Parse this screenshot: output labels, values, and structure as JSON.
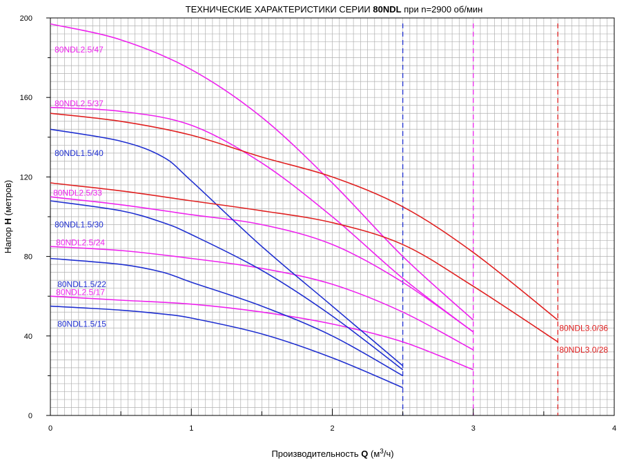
{
  "chart_data": {
    "type": "line",
    "title": {
      "prefix": "ТЕХНИЧЕСКИЕ ХАРАКТЕРИСТИКИ СЕРИИ ",
      "bold": "80NDL",
      "suffix": " при n=2900 об/мин"
    },
    "xlabel": {
      "prefix": "Производительность ",
      "bold": "Q",
      "unit_open": " (м",
      "sup": "3",
      "unit_close": "/ч)"
    },
    "ylabel": {
      "prefix": "Напор ",
      "bold": "H",
      "suffix": " (метров)"
    },
    "xlim": [
      0,
      4
    ],
    "ylim": [
      0,
      200
    ],
    "x_ticks": [
      "0",
      "1",
      "2",
      "3",
      "4"
    ],
    "y_ticks": [
      "0",
      "40",
      "80",
      "120",
      "160",
      "200"
    ],
    "grid": true,
    "colors": {
      "blue": "#1f2fd0",
      "magenta": "#ee22ee",
      "red": "#e02020",
      "grid": "#b0b0b0"
    },
    "vlines": [
      {
        "x": 2.5,
        "color": "#1f2fd0"
      },
      {
        "x": 3.0,
        "color": "#ee22ee"
      },
      {
        "x": 3.6,
        "color": "#e02020"
      }
    ],
    "series": [
      {
        "name": "80NDL2.5/47",
        "color": "#ee22ee",
        "x": [
          0,
          0.5,
          1.0,
          1.5,
          2.0,
          2.5,
          3.0
        ],
        "y": [
          197,
          189,
          174,
          150,
          117,
          80,
          48
        ]
      },
      {
        "name": "80NDL2.5/37",
        "color": "#ee22ee",
        "x": [
          0,
          0.5,
          1.0,
          1.5,
          2.0,
          2.5,
          3.0
        ],
        "y": [
          155,
          153,
          146,
          127,
          100,
          69,
          42
        ]
      },
      {
        "name": "80NDL2.5/33",
        "color": "#ee22ee",
        "x": [
          0,
          0.5,
          1.0,
          1.5,
          2.0,
          2.5,
          3.0
        ],
        "y": [
          110,
          106,
          101,
          96,
          86,
          67,
          42
        ]
      },
      {
        "name": "80NDL2.5/24",
        "color": "#ee22ee",
        "x": [
          0,
          0.5,
          1.0,
          1.5,
          2.0,
          2.5,
          3.0
        ],
        "y": [
          85,
          83,
          79,
          74,
          66,
          52,
          33
        ]
      },
      {
        "name": "80NDL2.5/17",
        "color": "#ee22ee",
        "x": [
          0,
          0.5,
          1.0,
          1.5,
          2.0,
          2.5,
          3.0
        ],
        "y": [
          60,
          58,
          56,
          52,
          46,
          37,
          23
        ]
      },
      {
        "name": "80NDL1.5/40",
        "color": "#1f2fd0",
        "x": [
          0,
          0.5,
          0.8,
          1.0,
          1.5,
          2.0,
          2.5
        ],
        "y": [
          144,
          138,
          130,
          118,
          85,
          55,
          25
        ]
      },
      {
        "name": "80NDL1.5/30",
        "color": "#1f2fd0",
        "x": [
          0,
          0.5,
          0.8,
          1.0,
          1.5,
          2.0,
          2.5
        ],
        "y": [
          108,
          103,
          97,
          91,
          73,
          50,
          23
        ]
      },
      {
        "name": "80NDL1.5/22",
        "color": "#1f2fd0",
        "x": [
          0,
          0.5,
          0.8,
          1.0,
          1.5,
          2.0,
          2.5
        ],
        "y": [
          79,
          76,
          72,
          67,
          55,
          40,
          20
        ]
      },
      {
        "name": "80NDL1.5/15",
        "color": "#1f2fd0",
        "x": [
          0,
          0.5,
          0.8,
          1.0,
          1.5,
          2.0,
          2.5
        ],
        "y": [
          55,
          53,
          51,
          49,
          41,
          29,
          14
        ]
      },
      {
        "name": "80NDL3.0/36",
        "color": "#e02020",
        "x": [
          0,
          0.5,
          1.0,
          1.5,
          2.0,
          2.5,
          3.0,
          3.6
        ],
        "y": [
          152,
          148,
          141,
          130,
          120,
          105,
          82,
          48
        ]
      },
      {
        "name": "80NDL3.0/28",
        "color": "#e02020",
        "x": [
          0,
          0.5,
          1.0,
          1.5,
          2.0,
          2.5,
          3.0,
          3.6
        ],
        "y": [
          117,
          113,
          108,
          103,
          97,
          86,
          65,
          37
        ]
      }
    ],
    "labels": [
      {
        "text": "80NDL2.5/47",
        "color": "#ee22ee",
        "at_x": 0.03,
        "at_y": 184,
        "anchor": "start"
      },
      {
        "text": "80NDL2.5/37",
        "color": "#ee22ee",
        "at_x": 0.03,
        "at_y": 157,
        "anchor": "start"
      },
      {
        "text": "80NDL1.5/40",
        "color": "#1f2fd0",
        "at_x": 0.03,
        "at_y": 132,
        "anchor": "start"
      },
      {
        "text": "80NDL2.5/33",
        "color": "#ee22ee",
        "at_x": 0.02,
        "at_y": 112,
        "anchor": "start"
      },
      {
        "text": "80NDL1.5/30",
        "color": "#1f2fd0",
        "at_x": 0.03,
        "at_y": 96,
        "anchor": "start"
      },
      {
        "text": "80NDL2.5/24",
        "color": "#ee22ee",
        "at_x": 0.04,
        "at_y": 87,
        "anchor": "start"
      },
      {
        "text": "80NDL1.5/22",
        "color": "#1f2fd0",
        "at_x": 0.05,
        "at_y": 66,
        "anchor": "start"
      },
      {
        "text": "80NDL2.5/17",
        "color": "#ee22ee",
        "at_x": 0.04,
        "at_y": 62,
        "anchor": "start"
      },
      {
        "text": "80NDL1.5/15",
        "color": "#1f2fd0",
        "at_x": 0.05,
        "at_y": 46,
        "anchor": "start"
      },
      {
        "text": "80NDL3.0/36",
        "color": "#e02020",
        "at_x": 3.61,
        "at_y": 44,
        "anchor": "start"
      },
      {
        "text": "80NDL3.0/28",
        "color": "#e02020",
        "at_x": 3.61,
        "at_y": 33,
        "anchor": "start"
      }
    ]
  }
}
